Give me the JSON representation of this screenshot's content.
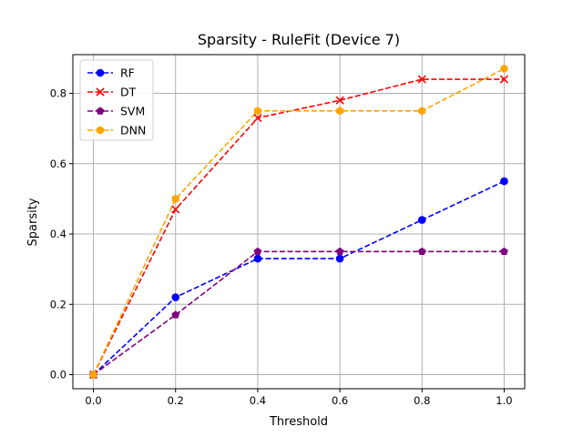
{
  "chart_data": {
    "type": "line",
    "title": "Sparsity - RuleFit (Device 7)",
    "xlabel": "Threshold",
    "ylabel": "Sparsity",
    "x": [
      0.0,
      0.2,
      0.4,
      0.6,
      0.8,
      1.0
    ],
    "xticks": [
      "0.0",
      "0.2",
      "0.4",
      "0.6",
      "0.8",
      "1.0"
    ],
    "yticks": [
      "0.0",
      "0.2",
      "0.4",
      "0.6",
      "0.8"
    ],
    "xlim": [
      -0.05,
      1.05
    ],
    "ylim": [
      -0.04,
      0.91
    ],
    "grid": true,
    "legend_position": "upper-left",
    "series": [
      {
        "name": "RF",
        "color": "#0000ff",
        "marker": "circle",
        "linestyle": "dashed",
        "values": [
          0.0,
          0.22,
          0.33,
          0.33,
          0.44,
          0.55
        ]
      },
      {
        "name": "DT",
        "color": "#ff0000",
        "marker": "x",
        "linestyle": "dashed",
        "values": [
          0.0,
          0.47,
          0.73,
          0.78,
          0.84,
          0.84
        ]
      },
      {
        "name": "SVM",
        "color": "#800080",
        "marker": "pentagon",
        "linestyle": "dashed",
        "values": [
          0.0,
          0.17,
          0.35,
          0.35,
          0.35,
          0.35
        ]
      },
      {
        "name": "DNN",
        "color": "#ffa500",
        "marker": "hexagon",
        "linestyle": "dashed",
        "values": [
          0.0,
          0.5,
          0.75,
          0.75,
          0.75,
          0.87
        ]
      }
    ]
  }
}
